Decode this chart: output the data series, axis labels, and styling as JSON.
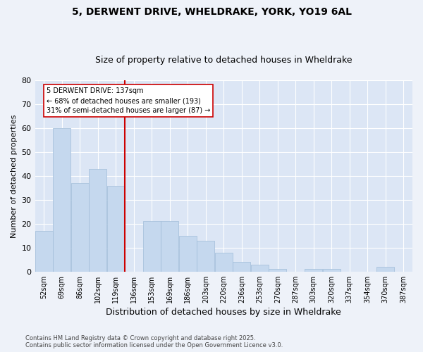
{
  "title1": "5, DERWENT DRIVE, WHELDRAKE, YORK, YO19 6AL",
  "title2": "Size of property relative to detached houses in Wheldrake",
  "xlabel": "Distribution of detached houses by size in Wheldrake",
  "ylabel": "Number of detached properties",
  "categories": [
    "52sqm",
    "69sqm",
    "86sqm",
    "102sqm",
    "119sqm",
    "136sqm",
    "153sqm",
    "169sqm",
    "186sqm",
    "203sqm",
    "220sqm",
    "236sqm",
    "253sqm",
    "270sqm",
    "287sqm",
    "303sqm",
    "320sqm",
    "337sqm",
    "354sqm",
    "370sqm",
    "387sqm"
  ],
  "values": [
    17,
    60,
    37,
    43,
    36,
    0,
    21,
    21,
    15,
    13,
    8,
    4,
    3,
    1,
    0,
    1,
    1,
    0,
    0,
    2,
    0
  ],
  "bar_color": "#c5d8ee",
  "bar_edge_color": "#a0bcd8",
  "vline_x": 4.5,
  "vline_color": "#cc0000",
  "annotation_title": "5 DERWENT DRIVE: 137sqm",
  "annotation_line1": "← 68% of detached houses are smaller (193)",
  "annotation_line2": "31% of semi-detached houses are larger (87) →",
  "annotation_box_color": "#ffffff",
  "annotation_border_color": "#cc0000",
  "ylim": [
    0,
    80
  ],
  "yticks": [
    0,
    10,
    20,
    30,
    40,
    50,
    60,
    70,
    80
  ],
  "background_color": "#dce6f5",
  "fig_background_color": "#eef2f9",
  "footer": "Contains HM Land Registry data © Crown copyright and database right 2025.\nContains public sector information licensed under the Open Government Licence v3.0.",
  "title_fontsize": 10,
  "subtitle_fontsize": 9,
  "xlabel_fontsize": 9,
  "ylabel_fontsize": 8,
  "tick_fontsize": 7,
  "footer_fontsize": 6
}
